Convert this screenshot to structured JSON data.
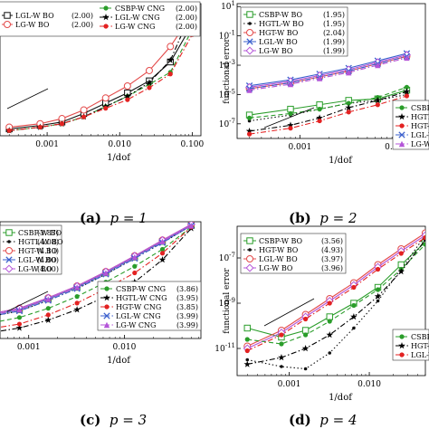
{
  "captions": [
    {
      "tag": "(a)",
      "text": "p = 1"
    },
    {
      "tag": "(b)",
      "text": "p = 2"
    },
    {
      "tag": "(c)",
      "text": "p = 3"
    },
    {
      "tag": "(d)",
      "text": "p = 4"
    }
  ],
  "chart_data": [
    {
      "id": "a",
      "type": "line",
      "xscale": "log",
      "yscale": "log",
      "xlabel": "1/dof",
      "ylabel": "",
      "xticks": [
        "0.001",
        "0.010",
        "0.100"
      ],
      "yticks": [],
      "legend_position": "top-left",
      "series": [
        {
          "name": "LGL-W BO",
          "rate": "(2.00)",
          "color": "#111111",
          "marker": "square-open",
          "dash": "solid",
          "x": [
            0.0003,
            0.0008,
            0.0016,
            0.0032,
            0.0064,
            0.0128,
            0.0256,
            0.05,
            0.1
          ],
          "y": [
            -7.1,
            -6.9,
            -6.7,
            -6.2,
            -5.6,
            -5.0,
            -4.3,
            -3.2,
            -1.0
          ]
        },
        {
          "name": "LG-W BO",
          "rate": "(2.00)",
          "color": "#e34a4a",
          "marker": "circle-open",
          "dash": "solid",
          "x": [
            0.0003,
            0.0008,
            0.0016,
            0.0032,
            0.0064,
            0.0128,
            0.0256,
            0.05,
            0.1
          ],
          "y": [
            -7.0,
            -6.8,
            -6.5,
            -6.0,
            -5.3,
            -4.6,
            -3.7,
            -2.3,
            -0.4
          ]
        },
        {
          "name": "CSBP-W CNG",
          "rate": "(2.00)",
          "color": "#2a9d2a",
          "marker": "circle-filled",
          "dash": "dashed",
          "x": [
            0.0003,
            0.0008,
            0.0016,
            0.0032,
            0.0064,
            0.0128,
            0.0256,
            0.05,
            0.1
          ],
          "y": [
            -7.2,
            -7.0,
            -6.8,
            -6.4,
            -5.8,
            -5.2,
            -4.5,
            -3.8,
            -1.3
          ]
        },
        {
          "name": "LGL-W CNG",
          "rate": "(2.00)",
          "color": "#000000",
          "marker": "star",
          "dash": "dashdot",
          "x": [
            0.0003,
            0.0008,
            0.0016,
            0.0032,
            0.0064,
            0.0128,
            0.0256,
            0.05,
            0.1
          ],
          "y": [
            -7.2,
            -7.0,
            -6.8,
            -6.4,
            -5.8,
            -5.2,
            -4.4,
            -3.1,
            -0.2
          ]
        },
        {
          "name": "LG-W CNG",
          "rate": "(2.00)",
          "color": "#e32222",
          "marker": "dot",
          "dash": "dashdot",
          "x": [
            0.0003,
            0.0008,
            0.0016,
            0.0032,
            0.0064,
            0.0128,
            0.0256,
            0.05,
            0.1
          ],
          "y": [
            -7.2,
            -7.0,
            -6.8,
            -6.4,
            -5.9,
            -5.4,
            -4.7,
            -3.9,
            -1.6
          ]
        }
      ]
    },
    {
      "id": "b",
      "type": "line",
      "xscale": "log",
      "yscale": "log",
      "xlabel": "1/dof",
      "ylabel": "functional error",
      "xticks": [
        "0.001",
        "0.010"
      ],
      "yticks": [
        "10^1",
        "10^-1",
        "10^-3",
        "10^-5",
        "10^-7"
      ],
      "ylim_exp": [
        -8.0,
        1.2
      ],
      "legend_position": "top-left",
      "series": [
        {
          "name": "CSBP-W BO",
          "rate": "(1.95)",
          "color": "#2a9d2a",
          "marker": "square-open",
          "dash": "solid",
          "x": [
            0.0003,
            0.0008,
            0.0016,
            0.0032,
            0.0064,
            0.0128
          ],
          "y": [
            -6.4,
            -6.0,
            -5.7,
            -5.4,
            -5.3,
            -4.7
          ]
        },
        {
          "name": "HGTL-W BO",
          "rate": "(1.95)",
          "color": "#111111",
          "marker": "dot-small",
          "dash": "dotted",
          "x": [
            0.0003,
            0.0008,
            0.0016,
            0.0032,
            0.0064,
            0.0128
          ],
          "y": [
            -6.8,
            -6.4,
            -6.0,
            -5.6,
            -5.4,
            -5.0
          ]
        },
        {
          "name": "HGT-W BO",
          "rate": "(2.04)",
          "color": "#e34a4a",
          "marker": "circle-open",
          "dash": "solid",
          "x": [
            0.0003,
            0.0008,
            0.0016,
            0.0032,
            0.0064,
            0.0128
          ],
          "y": [
            -4.6,
            -4.2,
            -3.8,
            -3.4,
            -2.9,
            -2.4
          ]
        },
        {
          "name": "LGL-W BO",
          "rate": "(1.99)",
          "color": "#3a5fcd",
          "marker": "x",
          "dash": "solid",
          "x": [
            0.0003,
            0.0008,
            0.0016,
            0.0032,
            0.0064,
            0.0128
          ],
          "y": [
            -4.4,
            -4.0,
            -3.6,
            -3.2,
            -2.7,
            -2.2
          ]
        },
        {
          "name": "LG-W BO",
          "rate": "(1.99)",
          "color": "#b455d8",
          "marker": "diamond-open",
          "dash": "solid",
          "x": [
            0.0003,
            0.0008,
            0.0016,
            0.0032,
            0.0064,
            0.0128
          ],
          "y": [
            -4.5,
            -4.1,
            -3.7,
            -3.3,
            -2.8,
            -2.3
          ]
        },
        {
          "name": "CSBP-W CNG",
          "rate": "",
          "color": "#2a9d2a",
          "marker": "dot",
          "dash": "dashed",
          "x": [
            0.0003,
            0.0008,
            0.0016,
            0.0032,
            0.0064,
            0.0128
          ],
          "y": [
            -6.6,
            -6.3,
            -6.0,
            -5.6,
            -5.2,
            -4.5
          ]
        },
        {
          "name": "HGTL-W CNG",
          "rate": "",
          "color": "#000000",
          "marker": "star",
          "dash": "dashdot",
          "x": [
            0.0003,
            0.0008,
            0.0016,
            0.0032,
            0.0064,
            0.0128
          ],
          "y": [
            -7.5,
            -7.1,
            -6.6,
            -5.9,
            -5.4,
            -4.8
          ]
        },
        {
          "name": "HGT-W CNG",
          "rate": "",
          "color": "#e32222",
          "marker": "dot",
          "dash": "dashdot",
          "x": [
            0.0003,
            0.0008,
            0.0016,
            0.0032,
            0.0064,
            0.0128
          ],
          "y": [
            -7.7,
            -7.3,
            -6.8,
            -6.2,
            -5.7,
            -5.1
          ]
        },
        {
          "name": "LGL-W CNG",
          "rate": "",
          "color": "#3a5fcd",
          "marker": "x",
          "dash": "dashdot",
          "x": [
            0.0003,
            0.0008,
            0.0016,
            0.0032,
            0.0064,
            0.0128
          ],
          "y": [
            -4.6,
            -4.2,
            -3.8,
            -3.4,
            -2.9,
            -2.4
          ]
        },
        {
          "name": "LG-W CNG",
          "rate": "",
          "color": "#b455d8",
          "marker": "triangle",
          "dash": "dashdot",
          "x": [
            0.0003,
            0.0008,
            0.0016,
            0.0032,
            0.0064,
            0.0128
          ],
          "y": [
            -4.7,
            -4.3,
            -3.9,
            -3.5,
            -3.0,
            -2.5
          ]
        }
      ]
    },
    {
      "id": "c",
      "type": "line",
      "xscale": "log",
      "yscale": "log",
      "xlabel": "1/dof",
      "ylabel": "",
      "xticks": [
        "0.001",
        "0.010"
      ],
      "yticks": [],
      "legend_position": "top-left and bottom-right",
      "series": [
        {
          "name": "CSBP-W BO",
          "rate": "(3.87)",
          "color": "#2a9d2a",
          "marker": "square-open",
          "dash": "solid",
          "x": [
            0.0003,
            0.0008,
            0.0016,
            0.0032,
            0.0064,
            0.0128,
            0.025,
            0.05
          ],
          "y": [
            -9.0,
            -8.4,
            -7.6,
            -6.7,
            -5.6,
            -4.4,
            -3.2,
            -2.0
          ]
        },
        {
          "name": "HGTL-W BO",
          "rate": "(4.08)",
          "color": "#111111",
          "marker": "dot-small",
          "dash": "dotted",
          "x": [
            0.0003,
            0.0008,
            0.0016,
            0.0032,
            0.0064,
            0.0128,
            0.025,
            0.05
          ],
          "y": [
            -9.1,
            -8.5,
            -7.7,
            -6.8,
            -5.7,
            -4.5,
            -3.3,
            -2.0
          ]
        },
        {
          "name": "HGT-W BO",
          "rate": "(4.10)",
          "color": "#e34a4a",
          "marker": "circle-open",
          "dash": "solid",
          "x": [
            0.0003,
            0.0008,
            0.0016,
            0.0032,
            0.0064,
            0.0128,
            0.025,
            0.05
          ],
          "y": [
            -8.9,
            -8.3,
            -7.5,
            -6.6,
            -5.5,
            -4.3,
            -3.1,
            -1.9
          ]
        },
        {
          "name": "LGL-W BO",
          "rate": "(4.00)",
          "color": "#3a5fcd",
          "marker": "x",
          "dash": "solid",
          "x": [
            0.0003,
            0.0008,
            0.0016,
            0.0032,
            0.0064,
            0.0128,
            0.025,
            0.05
          ],
          "y": [
            -9.0,
            -8.4,
            -7.6,
            -6.7,
            -5.6,
            -4.4,
            -3.2,
            -2.0
          ]
        },
        {
          "name": "LG-W BO",
          "rate": "(4.00)",
          "color": "#b455d8",
          "marker": "diamond-open",
          "dash": "solid",
          "x": [
            0.0003,
            0.0008,
            0.0016,
            0.0032,
            0.0064,
            0.0128,
            0.025,
            0.05
          ],
          "y": [
            -8.9,
            -8.3,
            -7.5,
            -6.6,
            -5.5,
            -4.3,
            -3.1,
            -1.9
          ]
        },
        {
          "name": "CSBP-W CNG",
          "rate": "(3.86)",
          "color": "#2a9d2a",
          "marker": "dot",
          "dash": "dashed",
          "x": [
            0.0003,
            0.0008,
            0.0016,
            0.0032,
            0.0064,
            0.0128,
            0.025,
            0.05
          ],
          "y": [
            -9.6,
            -9.0,
            -8.3,
            -7.4,
            -6.3,
            -5.1,
            -3.8,
            -2.1
          ]
        },
        {
          "name": "HGTL-W CNG",
          "rate": "(3.95)",
          "color": "#000000",
          "marker": "star",
          "dash": "dashdot",
          "x": [
            0.0003,
            0.0008,
            0.0016,
            0.0032,
            0.0064,
            0.0128,
            0.025,
            0.05
          ],
          "y": [
            -10.3,
            -9.8,
            -9.2,
            -8.4,
            -7.4,
            -6.3,
            -4.6,
            -2.2
          ]
        },
        {
          "name": "HGT-W CNG",
          "rate": "(3.85)",
          "color": "#e32222",
          "marker": "dot",
          "dash": "dashdot",
          "x": [
            0.0003,
            0.0008,
            0.0016,
            0.0032,
            0.0064,
            0.0128,
            0.025,
            0.05
          ],
          "y": [
            -10.0,
            -9.5,
            -8.8,
            -7.9,
            -6.8,
            -5.6,
            -4.1,
            -2.1
          ]
        },
        {
          "name": "LGL-W CNG",
          "rate": "(3.99)",
          "color": "#3a5fcd",
          "marker": "x",
          "dash": "dashdot",
          "x": [
            0.0003,
            0.0008,
            0.0016,
            0.0032,
            0.0064,
            0.0128,
            0.025,
            0.05
          ],
          "y": [
            -9.1,
            -8.5,
            -7.7,
            -6.8,
            -5.7,
            -4.5,
            -3.3,
            -2.0
          ]
        },
        {
          "name": "LG-W CNG",
          "rate": "(3.99)",
          "color": "#b455d8",
          "marker": "triangle",
          "dash": "dashdot",
          "x": [
            0.0003,
            0.0008,
            0.0016,
            0.0032,
            0.0064,
            0.0128,
            0.025,
            0.05
          ],
          "y": [
            -9.0,
            -8.4,
            -7.6,
            -6.7,
            -5.6,
            -4.4,
            -3.2,
            -2.0
          ]
        }
      ]
    },
    {
      "id": "d",
      "type": "line",
      "xscale": "log",
      "yscale": "log",
      "xlabel": "1/dof",
      "ylabel": "functional error",
      "xticks": [
        "0.001",
        "0.010"
      ],
      "yticks": [
        "10^-7",
        "10^-9",
        "10^-11"
      ],
      "ylim_exp": [
        -12.2,
        -5.6
      ],
      "legend_position": "top-left and bottom-right",
      "series": [
        {
          "name": "CSBP-W BO",
          "rate": "(3.56)",
          "color": "#2a9d2a",
          "marker": "square-open",
          "dash": "solid",
          "x": [
            0.0003,
            0.0008,
            0.0016,
            0.0032,
            0.0064,
            0.0128,
            0.025,
            0.05
          ],
          "y": [
            -10.1,
            -10.5,
            -10.2,
            -9.6,
            -9.0,
            -8.3,
            -7.3,
            -6.3
          ]
        },
        {
          "name": "HGT-W BO",
          "rate": "(4.93)",
          "color": "#111111",
          "marker": "dot-small",
          "dash": "dotted",
          "x": [
            0.0003,
            0.0008,
            0.0016,
            0.0032,
            0.0064,
            0.0128,
            0.025,
            0.05
          ],
          "y": [
            -11.5,
            -11.8,
            -11.9,
            -11.2,
            -10.1,
            -8.9,
            -7.5,
            -6.0
          ]
        },
        {
          "name": "LGL-W BO",
          "rate": "(3.97)",
          "color": "#e34a4a",
          "marker": "circle-open",
          "dash": "solid",
          "x": [
            0.0003,
            0.0008,
            0.0016,
            0.0032,
            0.0064,
            0.0128,
            0.025,
            0.05
          ],
          "y": [
            -10.9,
            -10.2,
            -9.5,
            -8.8,
            -8.1,
            -7.3,
            -6.6,
            -5.9
          ]
        },
        {
          "name": "LG-W BO",
          "rate": "(3.96)",
          "color": "#b455d8",
          "marker": "diamond-open",
          "dash": "solid",
          "x": [
            0.0003,
            0.0008,
            0.0016,
            0.0032,
            0.0064,
            0.0128,
            0.025,
            0.05
          ],
          "y": [
            -11.0,
            -10.3,
            -9.6,
            -8.9,
            -8.2,
            -7.4,
            -6.7,
            -6.0
          ]
        },
        {
          "name": "CSBP-W CNG",
          "rate": "",
          "color": "#2a9d2a",
          "marker": "dot",
          "dash": "dashed",
          "x": [
            0.0003,
            0.0008,
            0.0016,
            0.0032,
            0.0064,
            0.0128,
            0.025,
            0.05
          ],
          "y": [
            -10.6,
            -10.8,
            -10.4,
            -9.8,
            -9.1,
            -8.4,
            -7.5,
            -6.4
          ]
        },
        {
          "name": "HGT-W CNG",
          "rate": "",
          "color": "#000000",
          "marker": "star",
          "dash": "dashdot",
          "x": [
            0.0003,
            0.0008,
            0.0016,
            0.0032,
            0.0064,
            0.0128,
            0.025,
            0.05
          ],
          "y": [
            -11.7,
            -11.4,
            -11.0,
            -10.4,
            -9.6,
            -8.7,
            -7.6,
            -6.2
          ]
        },
        {
          "name": "LGL-W CNG",
          "rate": "",
          "color": "#e32222",
          "marker": "dot",
          "dash": "dashdot",
          "x": [
            0.0003,
            0.0008,
            0.0016,
            0.0032,
            0.0064,
            0.0128,
            0.025,
            0.05
          ],
          "y": [
            -11.1,
            -10.4,
            -9.7,
            -9.0,
            -8.3,
            -7.5,
            -6.8,
            -6.1
          ]
        }
      ]
    }
  ]
}
